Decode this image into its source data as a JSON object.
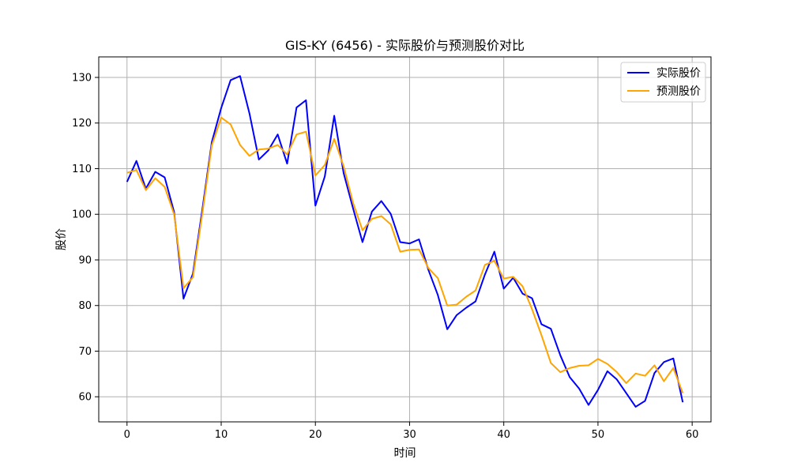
{
  "chart_data": {
    "type": "line",
    "title": "GIS-KY (6456) - 实际股价与预测股价对比",
    "xlabel": "时间",
    "ylabel": "股价",
    "xlim": [
      -3,
      62
    ],
    "ylim": [
      54.5,
      134.5
    ],
    "xticks": [
      0,
      10,
      20,
      30,
      40,
      50,
      60
    ],
    "yticks": [
      60,
      70,
      80,
      90,
      100,
      110,
      120,
      130
    ],
    "grid": true,
    "legend_position": "top-right",
    "x": [
      0,
      1,
      2,
      3,
      4,
      5,
      6,
      7,
      8,
      9,
      10,
      11,
      12,
      13,
      14,
      15,
      16,
      17,
      18,
      19,
      20,
      21,
      22,
      23,
      24,
      25,
      26,
      27,
      28,
      29,
      30,
      31,
      32,
      33,
      34,
      35,
      36,
      37,
      38,
      39,
      40,
      41,
      42,
      43,
      44,
      45,
      46,
      47,
      48,
      49,
      50,
      51,
      52,
      53,
      54,
      55,
      56,
      57,
      58,
      59
    ],
    "series": [
      {
        "name": "实际股价",
        "color": "#0000ff",
        "values": [
          107.1,
          111.7,
          105.6,
          109.3,
          108.1,
          100.5,
          81.5,
          87,
          101.1,
          115.8,
          123.3,
          129.4,
          130.3,
          122.1,
          112,
          114,
          117.5,
          111.1,
          123.4,
          125,
          101.9,
          108.3,
          121.6,
          109,
          101.3,
          93.9,
          100.6,
          102.9,
          100.1,
          93.9,
          93.6,
          94.5,
          87.8,
          82.3,
          74.8,
          77.9,
          79.5,
          80.9,
          86.8,
          91.8,
          83.7,
          86.1,
          82.6,
          81.6,
          75.9,
          74.9,
          69.1,
          64.3,
          61.8,
          58.2,
          61.5,
          65.6,
          63.8,
          60.8,
          57.8,
          59.1,
          65.2,
          67.6,
          68.4,
          58.8
        ]
      },
      {
        "name": "预测股价",
        "color": "#ffa500",
        "values": [
          109.1,
          109.7,
          105.3,
          107.9,
          106,
          100,
          83.8,
          86.2,
          100.2,
          115.1,
          121.2,
          119.7,
          115.2,
          112.8,
          114.2,
          114.4,
          115.2,
          113.1,
          117.5,
          118.1,
          108.5,
          110.8,
          116.5,
          110.5,
          102.5,
          96.5,
          99,
          99.6,
          97.8,
          91.8,
          92.2,
          92.3,
          88.2,
          86,
          80,
          80.2,
          81.9,
          83.3,
          88.9,
          89.8,
          85.9,
          86.3,
          84.2,
          79.2,
          73.5,
          67.4,
          65.4,
          66.3,
          66.8,
          66.9,
          68.3,
          67.2,
          65.4,
          63,
          65.1,
          64.6,
          66.9,
          63.4,
          66.3,
          60.8
        ]
      }
    ]
  }
}
